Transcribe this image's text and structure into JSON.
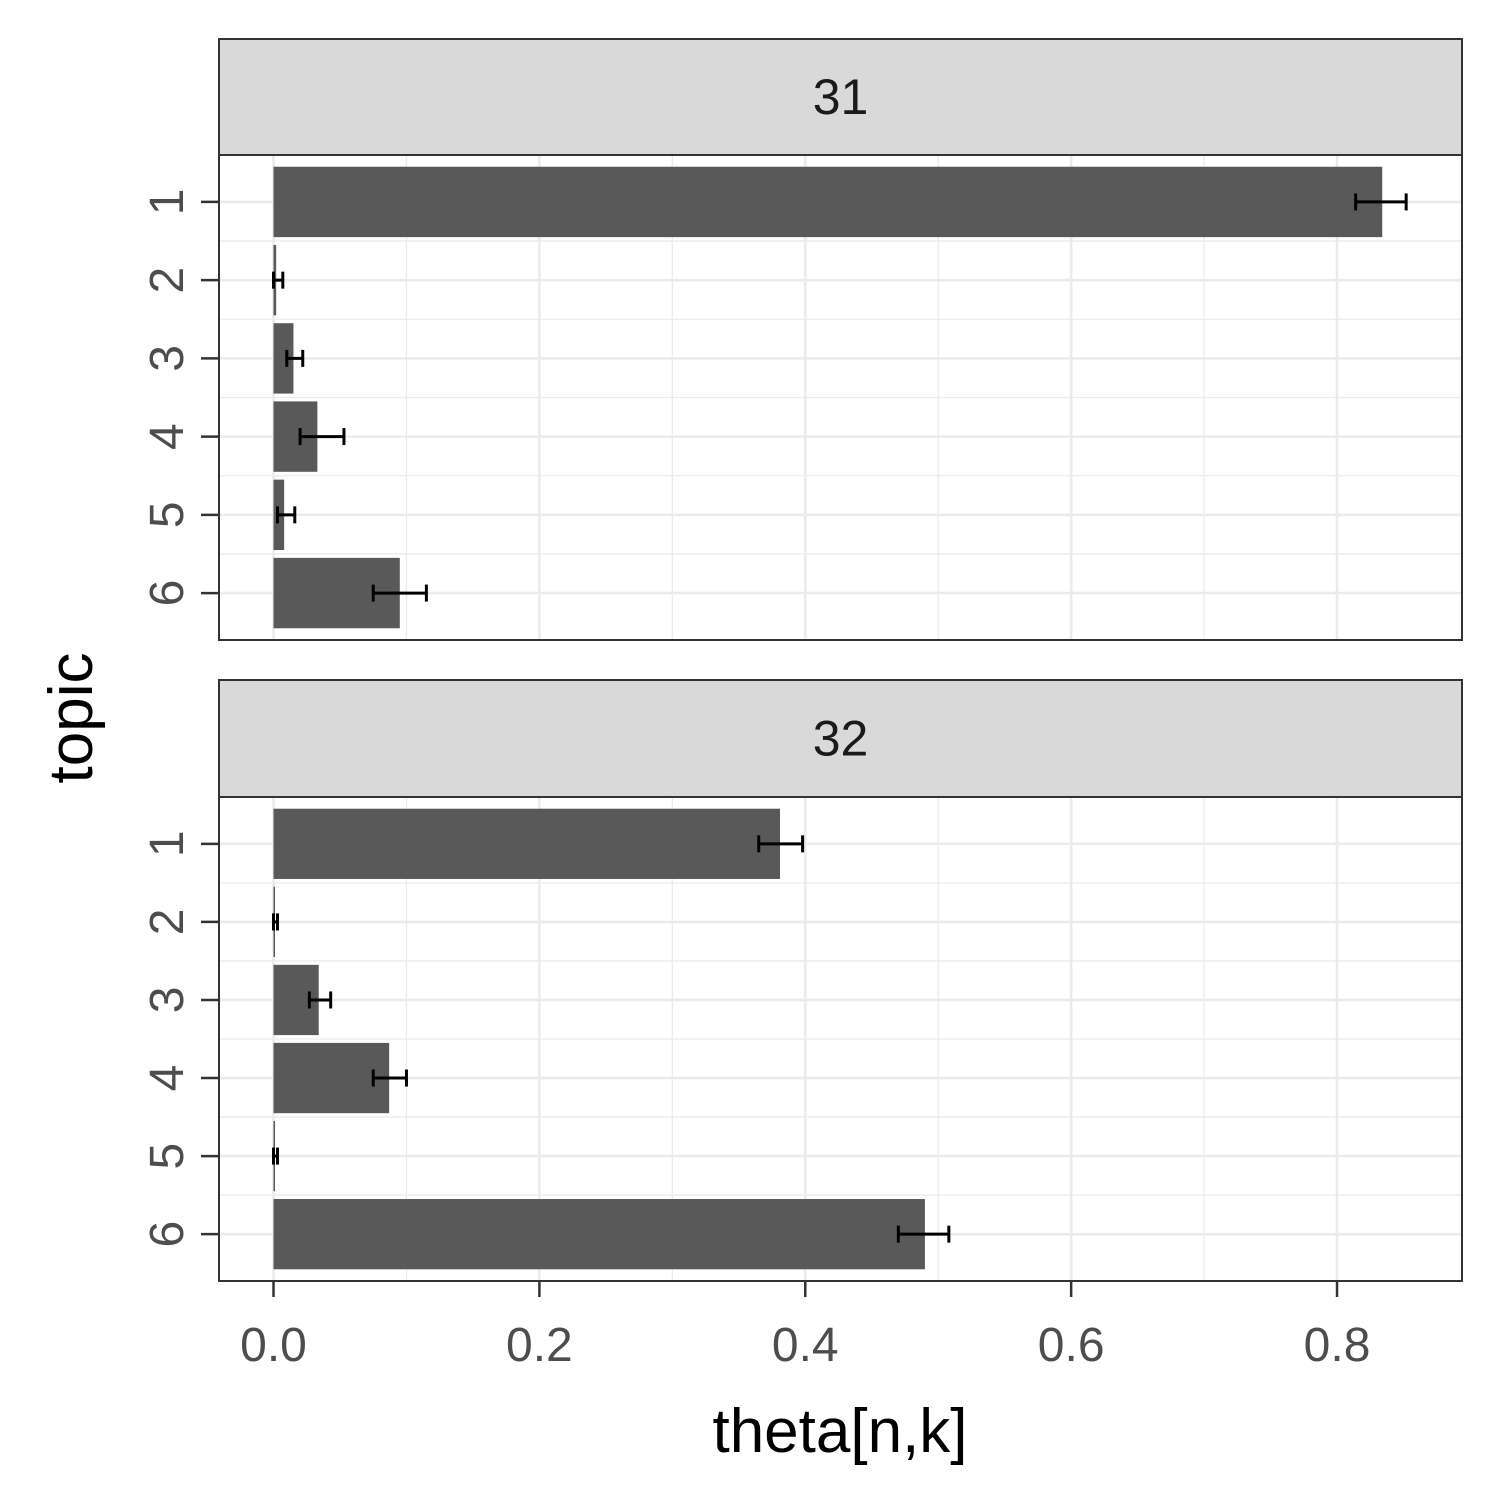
{
  "chart_data": {
    "type": "bar",
    "orientation": "horizontal",
    "xlabel": "theta[n,k]",
    "ylabel": "topic",
    "xlim": [
      -0.041,
      0.894
    ],
    "x_ticks": [
      0.0,
      0.2,
      0.4,
      0.6,
      0.8
    ],
    "x_tick_labels": [
      "0.0",
      "0.2",
      "0.4",
      "0.6",
      "0.8"
    ],
    "categories": [
      "1",
      "2",
      "3",
      "4",
      "5",
      "6"
    ],
    "grid": true,
    "bar_color": "#595959",
    "errorbar_color": "#000000",
    "panels": [
      {
        "label": "31",
        "values": [
          0.834,
          0.002,
          0.015,
          0.033,
          0.008,
          0.095
        ],
        "error_low": [
          0.814,
          0.0,
          0.01,
          0.02,
          0.003,
          0.075
        ],
        "error_high": [
          0.852,
          0.007,
          0.022,
          0.053,
          0.016,
          0.115
        ]
      },
      {
        "label": "32",
        "values": [
          0.381,
          0.001,
          0.034,
          0.087,
          0.001,
          0.49
        ],
        "error_low": [
          0.365,
          0.0,
          0.027,
          0.075,
          0.0,
          0.47
        ],
        "error_high": [
          0.398,
          0.003,
          0.043,
          0.1,
          0.003,
          0.508
        ]
      }
    ]
  }
}
